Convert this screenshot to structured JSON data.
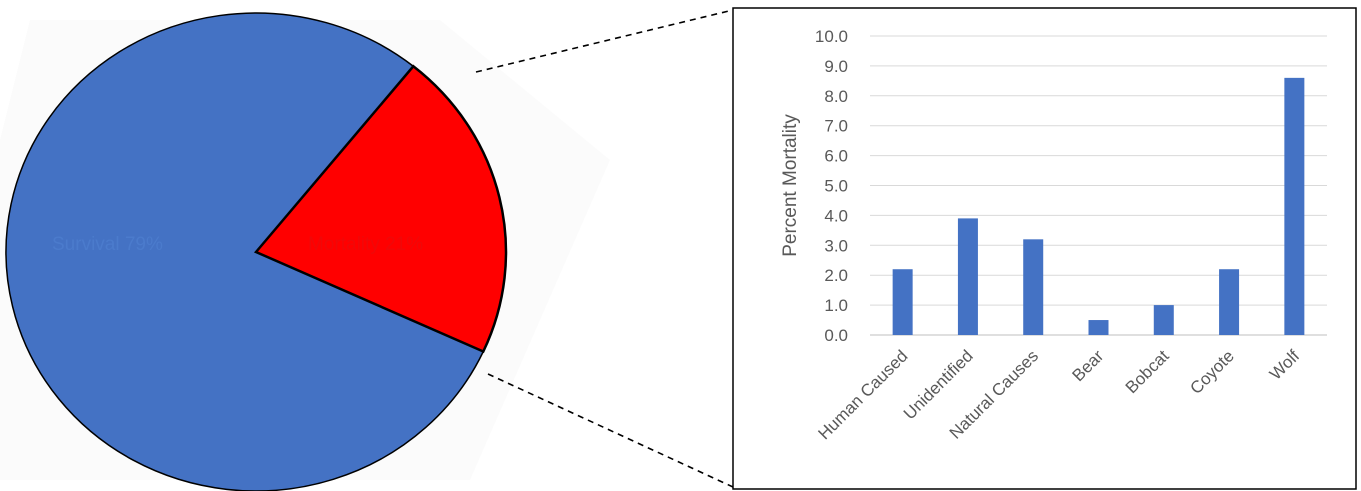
{
  "chart_data": [
    {
      "type": "pie",
      "slices": [
        {
          "label": "Survival 79%",
          "value": 79,
          "color": "#4472C4"
        },
        {
          "label": "Mortality 21%",
          "value": 21,
          "color": "#FF0000"
        }
      ]
    },
    {
      "type": "bar",
      "categories": [
        "Human Caused",
        "Unidentified",
        "Natural Causes",
        "Bear",
        "Bobcat",
        "Coyote",
        "Wolf"
      ],
      "series": [
        {
          "values": [
            2.2,
            3.9,
            3.2,
            0.5,
            1.0,
            2.2,
            8.6
          ],
          "color": "#4472C4"
        }
      ],
      "ylabel": "Percent Mortality",
      "ylim": [
        0,
        10
      ],
      "yticks": [
        "0.0",
        "1.0",
        "2.0",
        "3.0",
        "4.0",
        "5.0",
        "6.0",
        "7.0",
        "8.0",
        "9.0",
        "10.0"
      ],
      "grid": true
    }
  ]
}
